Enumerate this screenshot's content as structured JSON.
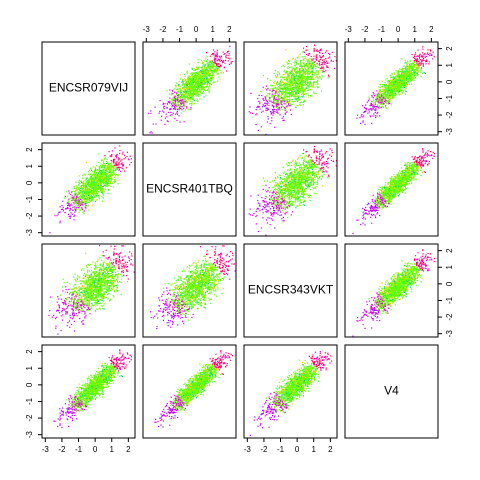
{
  "chart_data": {
    "type": "scatter",
    "layout": "pairs-matrix",
    "variables": [
      "ENCSR079VIJ",
      "ENCSR401TBQ",
      "ENCSR343VKT",
      "V4"
    ],
    "axis_range": [
      -3.2,
      2.4
    ],
    "ticks": [
      -3,
      -2,
      -1,
      0,
      1,
      2
    ],
    "tick_labels": [
      "-3",
      "-2",
      "-1",
      "0",
      "1",
      "2"
    ],
    "point_colors": [
      "#ff0066",
      "#e600e6",
      "#aa00ff",
      "#ffcc00",
      "#66ff00",
      "#33ff33",
      "#00cc88"
    ],
    "panels": [
      {
        "row": 1,
        "col": 2,
        "center_x": -0.1,
        "center_y": -0.1,
        "spread": 0.8,
        "correlation": 0.82
      },
      {
        "row": 1,
        "col": 3,
        "center_x": -0.2,
        "center_y": -0.1,
        "spread": 0.9,
        "correlation": 0.7
      },
      {
        "row": 1,
        "col": 4,
        "center_x": -0.1,
        "center_y": -0.1,
        "spread": 0.8,
        "correlation": 0.9
      },
      {
        "row": 2,
        "col": 1,
        "center_x": -0.1,
        "center_y": -0.1,
        "spread": 0.8,
        "correlation": 0.82
      },
      {
        "row": 2,
        "col": 3,
        "center_x": -0.2,
        "center_y": -0.1,
        "spread": 0.9,
        "correlation": 0.72
      },
      {
        "row": 2,
        "col": 4,
        "center_x": -0.1,
        "center_y": -0.1,
        "spread": 0.8,
        "correlation": 0.92
      },
      {
        "row": 3,
        "col": 1,
        "center_x": -0.1,
        "center_y": -0.2,
        "spread": 0.9,
        "correlation": 0.7
      },
      {
        "row": 3,
        "col": 2,
        "center_x": -0.1,
        "center_y": -0.2,
        "spread": 0.9,
        "correlation": 0.72
      },
      {
        "row": 3,
        "col": 4,
        "center_x": -0.1,
        "center_y": -0.2,
        "spread": 0.8,
        "correlation": 0.88
      },
      {
        "row": 4,
        "col": 1,
        "center_x": -0.1,
        "center_y": -0.1,
        "spread": 0.8,
        "correlation": 0.9
      },
      {
        "row": 4,
        "col": 2,
        "center_x": -0.1,
        "center_y": -0.1,
        "spread": 0.8,
        "correlation": 0.92
      },
      {
        "row": 4,
        "col": 3,
        "center_x": -0.2,
        "center_y": -0.1,
        "spread": 0.8,
        "correlation": 0.88
      }
    ],
    "top_axes_on_columns": [
      2,
      4
    ],
    "bottom_axes_on_columns": [
      1,
      3
    ],
    "left_axes_on_rows": [
      2,
      4
    ],
    "right_axes_on_rows": [
      1,
      3
    ]
  }
}
